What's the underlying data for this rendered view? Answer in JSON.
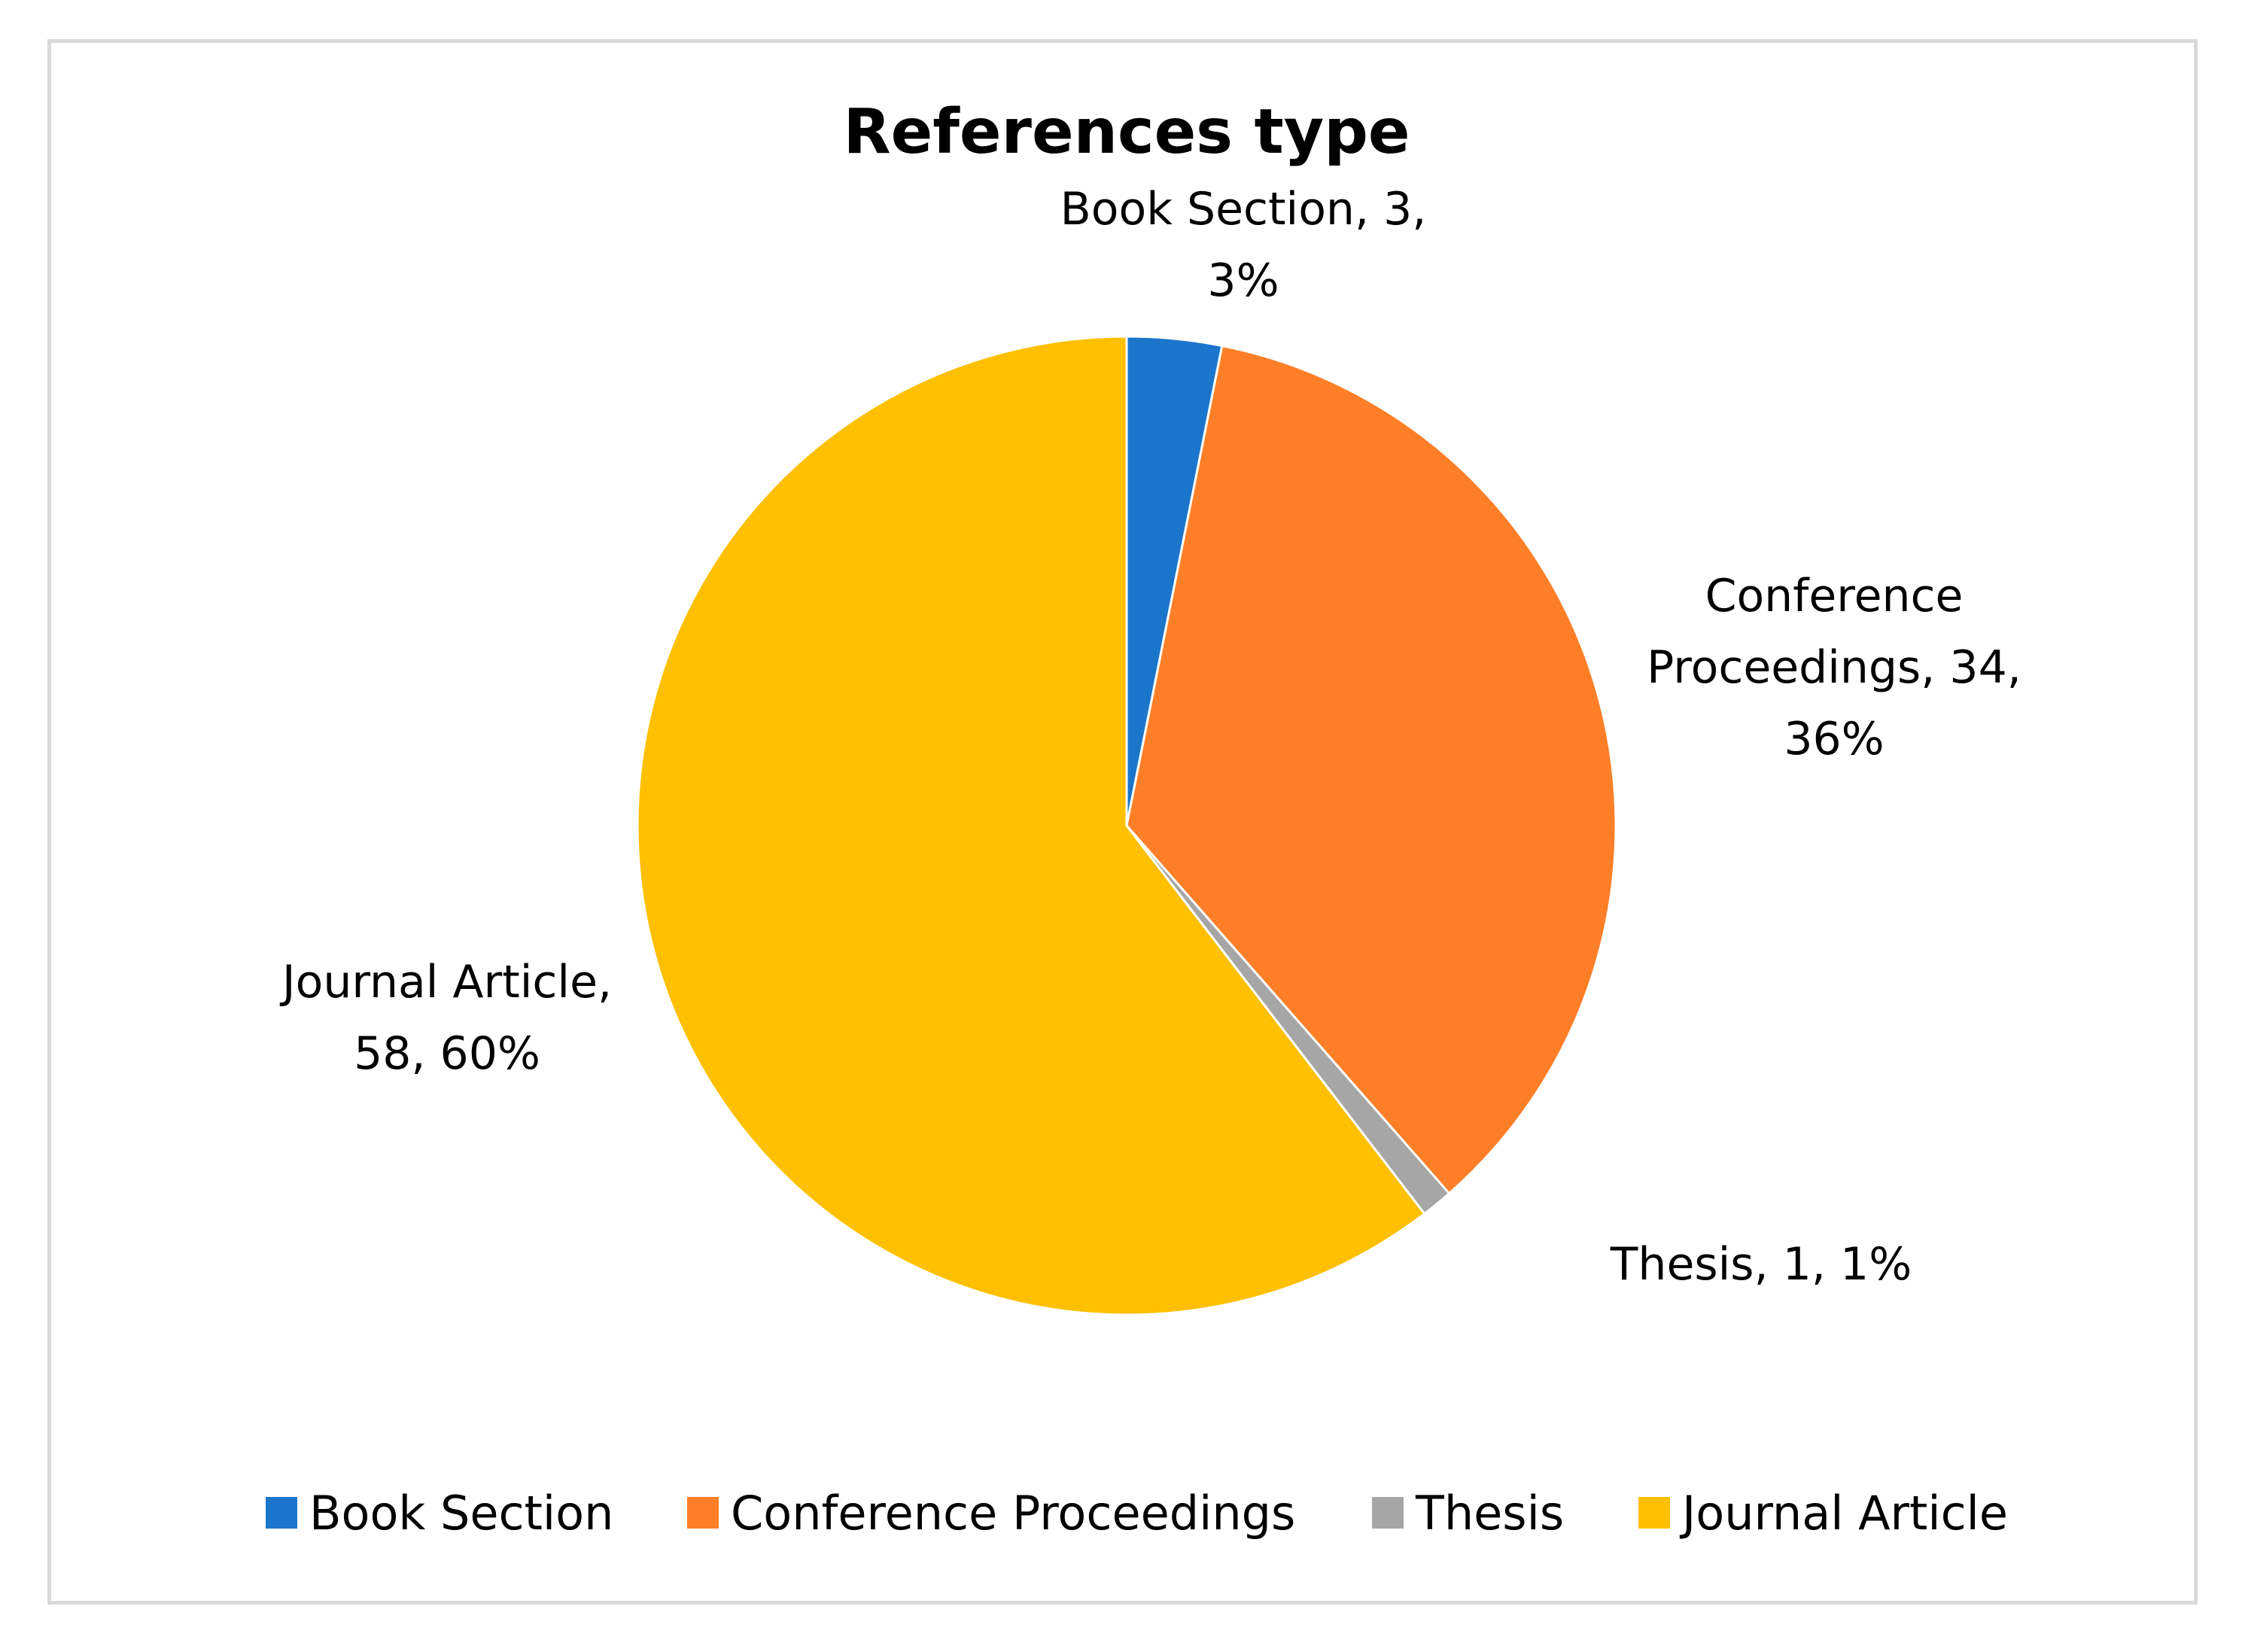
{
  "chart_data": {
    "type": "pie",
    "title": "References type",
    "categories": [
      "Book Section",
      "Conference Proceedings",
      "Thesis",
      "Journal Article"
    ],
    "values": [
      3,
      34,
      1,
      58
    ],
    "percentages": [
      "3%",
      "36%",
      "1%",
      "60%"
    ],
    "colors": [
      "#1b75cb",
      "#fe7f27",
      "#a6a6a6",
      "#fec000"
    ],
    "data_labels": [
      [
        "Book Section, 3,",
        "3%"
      ],
      [
        "Conference",
        "Proceedings, 34,",
        "36%"
      ],
      [
        "Thesis, 1, 1%"
      ],
      [
        "Journal Article,",
        "58, 60%"
      ]
    ],
    "legend": {
      "position": "bottom",
      "entries": [
        "Book Section",
        "Conference Proceedings",
        "Thesis",
        "Journal Article"
      ]
    }
  }
}
